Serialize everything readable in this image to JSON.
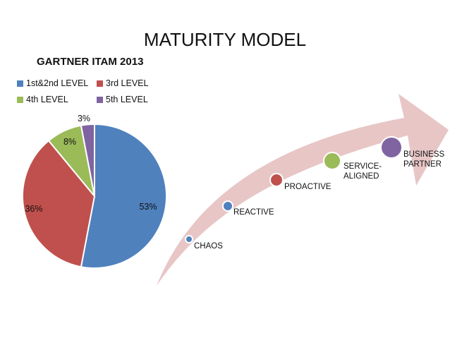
{
  "slide": {
    "title": "MATURITY MODEL"
  },
  "chart_data": [
    {
      "type": "pie",
      "title": "GARTNER ITAM 2013",
      "categories": [
        "1st&2nd LEVEL",
        "3rd LEVEL",
        "4th LEVEL",
        "5th LEVEL"
      ],
      "values": [
        53,
        36,
        8,
        3
      ],
      "value_labels": [
        "53%",
        "36%",
        "8%",
        "3%"
      ],
      "colors": [
        "#4f81bd",
        "#c0504d",
        "#9bbb59",
        "#8064a2"
      ],
      "legend_position": "top"
    }
  ],
  "maturity_arrow": {
    "color": "#e8c6c6",
    "stages": [
      {
        "label": "CHAOS",
        "color": "#4f81bd"
      },
      {
        "label": "REACTIVE",
        "color": "#4f81bd"
      },
      {
        "label": "PROACTIVE",
        "color": "#c0504d"
      },
      {
        "label": "SERVICE-ALIGNED",
        "line1": "SERVICE-",
        "line2": "ALIGNED",
        "color": "#9bbb59"
      },
      {
        "label": "BUSINESS PARTNER",
        "line1": "BUSINESS",
        "line2": "PARTNER",
        "color": "#8064a2"
      }
    ]
  }
}
